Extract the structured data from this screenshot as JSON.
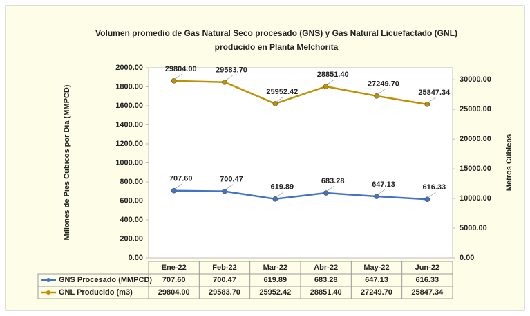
{
  "chart_data": {
    "type": "line",
    "title": [
      "Volumen promedio de Gas Natural Seco procesado (GNS) y Gas Natural Licuefactado (GNL)",
      "producido en Planta Melchorita"
    ],
    "ylabel": "Millones de Pies Cúbicos por Día (MMPCD)",
    "y2label": "Metros Cúbicos",
    "categories": [
      "Ene-22",
      "Feb-22",
      "Mar-22",
      "Abr-22",
      "May-22",
      "Jun-22"
    ],
    "series": [
      {
        "name": "GNS Procesado (MMPCD)",
        "color": "#4472c4",
        "axis": "y",
        "values": [
          707.6,
          700.47,
          619.89,
          683.28,
          647.13,
          616.33
        ],
        "value_labels": [
          "707.60",
          "700.47",
          "619.89",
          "683.28",
          "647.13",
          "616.33"
        ]
      },
      {
        "name": "GNL Producido (m3)",
        "color": "#bf9000",
        "axis": "y2",
        "values": [
          29804,
          29583.7,
          25952.42,
          28851.4,
          27249.7,
          25847.34
        ],
        "value_labels": [
          "29804.00",
          "29583.70",
          "25952.42",
          "28851.40",
          "27249.70",
          "25847.34"
        ]
      }
    ],
    "ylim": [
      0,
      2000
    ],
    "yticks": [
      {
        "value": 0,
        "label": "0.00"
      },
      {
        "value": 200,
        "label": "200.00"
      },
      {
        "value": 400,
        "label": "400.00"
      },
      {
        "value": 600,
        "label": "600.00"
      },
      {
        "value": 800,
        "label": "800.00"
      },
      {
        "value": 1000,
        "label": "1000.00"
      },
      {
        "value": 1200,
        "label": "1200.00"
      },
      {
        "value": 1400,
        "label": "1400.00"
      },
      {
        "value": 1600,
        "label": "1600.00"
      },
      {
        "value": 1800,
        "label": "1800.00"
      },
      {
        "value": 2000,
        "label": "2000.00"
      }
    ],
    "y2lim": [
      0,
      32000
    ],
    "y2ticks": [
      {
        "value": 0,
        "label": "0.00"
      },
      {
        "value": 5000,
        "label": "5000.00"
      },
      {
        "value": 10000,
        "label": "10000.00"
      },
      {
        "value": 15000,
        "label": "15000.00"
      },
      {
        "value": 20000,
        "label": "20000.00"
      },
      {
        "value": 25000,
        "label": "25000.00"
      },
      {
        "value": 30000,
        "label": "30000.00"
      }
    ],
    "grid": false
  }
}
